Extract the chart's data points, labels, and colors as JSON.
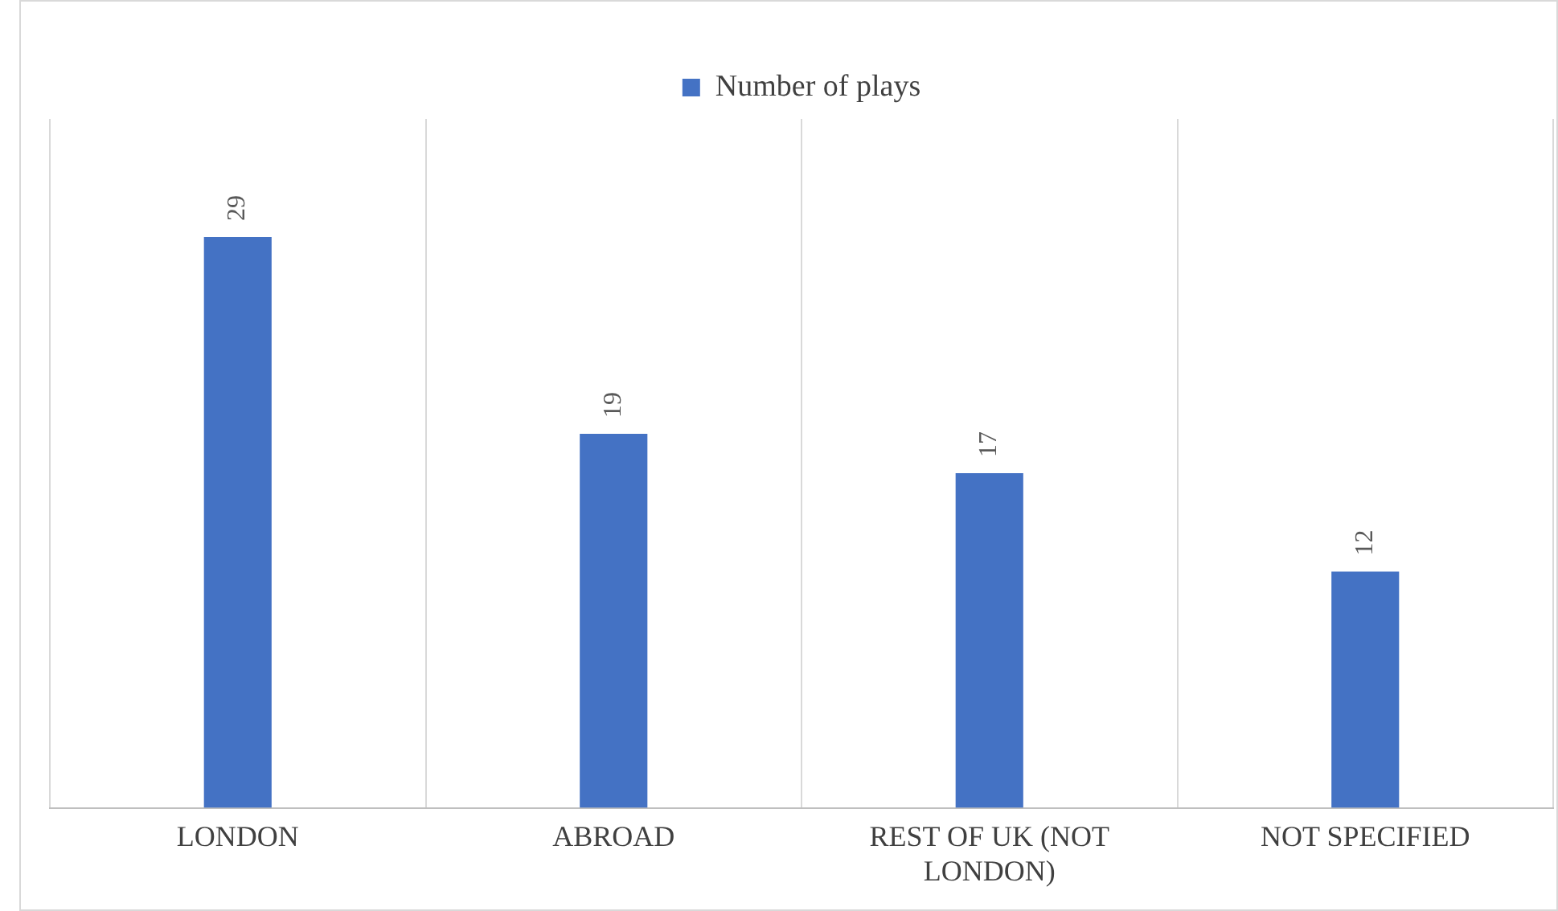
{
  "chart_data": {
    "type": "bar",
    "categories": [
      "LONDON",
      "ABROAD",
      "REST OF UK (NOT LONDON)",
      "NOT SPECIFIED"
    ],
    "series": [
      {
        "name": "Number of plays",
        "color": "#4472c4",
        "values": [
          29,
          19,
          17,
          12
        ]
      }
    ],
    "data_labels": true,
    "legend": "top",
    "grid": "x",
    "tick_labels": "x"
  }
}
